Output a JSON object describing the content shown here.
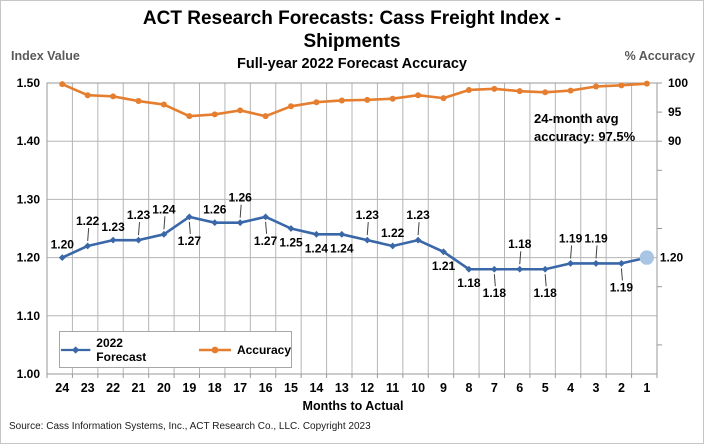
{
  "footer": "Source: Cass Information Systems, Inc., ACT Research Co., LLC. Copyright 2023",
  "chart_data": {
    "type": "line",
    "title": "ACT Research Forecasts: Cass Freight Index - Shipments",
    "title_line1": "ACT Research Forecasts: Cass Freight Index -",
    "title_line2": "Shipments",
    "subtitle": "Full-year 2022 Forecast Accuracy",
    "xlabel": "Months to Actual",
    "ylabel_left": "Index Value",
    "ylabel_right": "% Accuracy",
    "grid": true,
    "legend_position": "inside-bottom-left",
    "categories": [
      "24",
      "23",
      "22",
      "21",
      "20",
      "19",
      "18",
      "17",
      "16",
      "15",
      "14",
      "13",
      "12",
      "11",
      "10",
      "9",
      "8",
      "7",
      "6",
      "5",
      "4",
      "3",
      "2",
      "1"
    ],
    "series": [
      {
        "name": "2022 Forecast",
        "axis": "left",
        "color": "#3A67A8",
        "last_marker_color": "#A9C5E4",
        "values": [
          1.2,
          1.22,
          1.23,
          1.23,
          1.24,
          1.27,
          1.26,
          1.26,
          1.27,
          1.25,
          1.24,
          1.24,
          1.23,
          1.22,
          1.23,
          1.21,
          1.18,
          1.18,
          1.18,
          1.18,
          1.19,
          1.19,
          1.19,
          1.2
        ],
        "labels": [
          "1.20",
          "1.22",
          "1.23",
          "1.23",
          "1.24",
          "1.27",
          "1.26",
          "1.26",
          "1.27",
          "1.25",
          "1.24",
          "1.24",
          "1.23",
          "1.22",
          "1.23",
          "1.21",
          "1.18",
          "1.18",
          "1.18",
          "1.18",
          "1.19",
          "1.19",
          "1.19",
          "1.20"
        ],
        "label_positions": [
          "a",
          "al",
          "a",
          "al",
          "al",
          "bl",
          "a",
          "al",
          "bl",
          "b",
          "b",
          "b",
          "al",
          "a",
          "al",
          "b",
          "b",
          "bl",
          "al",
          "bl",
          "al",
          "al",
          "bl",
          "r"
        ]
      },
      {
        "name": "Accuracy",
        "axis": "right",
        "color": "#E57E2F",
        "values": [
          99.8,
          97.9,
          97.7,
          96.9,
          96.3,
          94.3,
          94.6,
          95.3,
          94.3,
          96.0,
          96.7,
          97.0,
          97.1,
          97.3,
          97.9,
          97.4,
          98.8,
          99.0,
          98.6,
          98.4,
          98.7,
          99.4,
          99.6,
          99.9
        ]
      }
    ],
    "left_axis": {
      "min": 1.0,
      "max": 1.5,
      "ticks": [
        {
          "label": "1.50",
          "value": 1.5
        },
        {
          "label": "1.40",
          "value": 1.4
        },
        {
          "label": "1.30",
          "value": 1.3
        },
        {
          "label": "1.20",
          "value": 1.2
        },
        {
          "label": "1.10",
          "value": 1.1
        },
        {
          "label": "1.00",
          "value": 1.0
        }
      ]
    },
    "right_axis": {
      "min": 50,
      "max": 100,
      "ticks": [
        {
          "label": "100",
          "value": 100
        },
        {
          "label": "95",
          "value": 95
        },
        {
          "label": "90",
          "value": 90
        }
      ],
      "minor_tick_values": [
        85,
        75,
        65,
        55
      ]
    },
    "annotation": {
      "line1": "24-month avg",
      "line2": "accuracy: 97.5%",
      "avg_accuracy": "97.5%"
    }
  }
}
